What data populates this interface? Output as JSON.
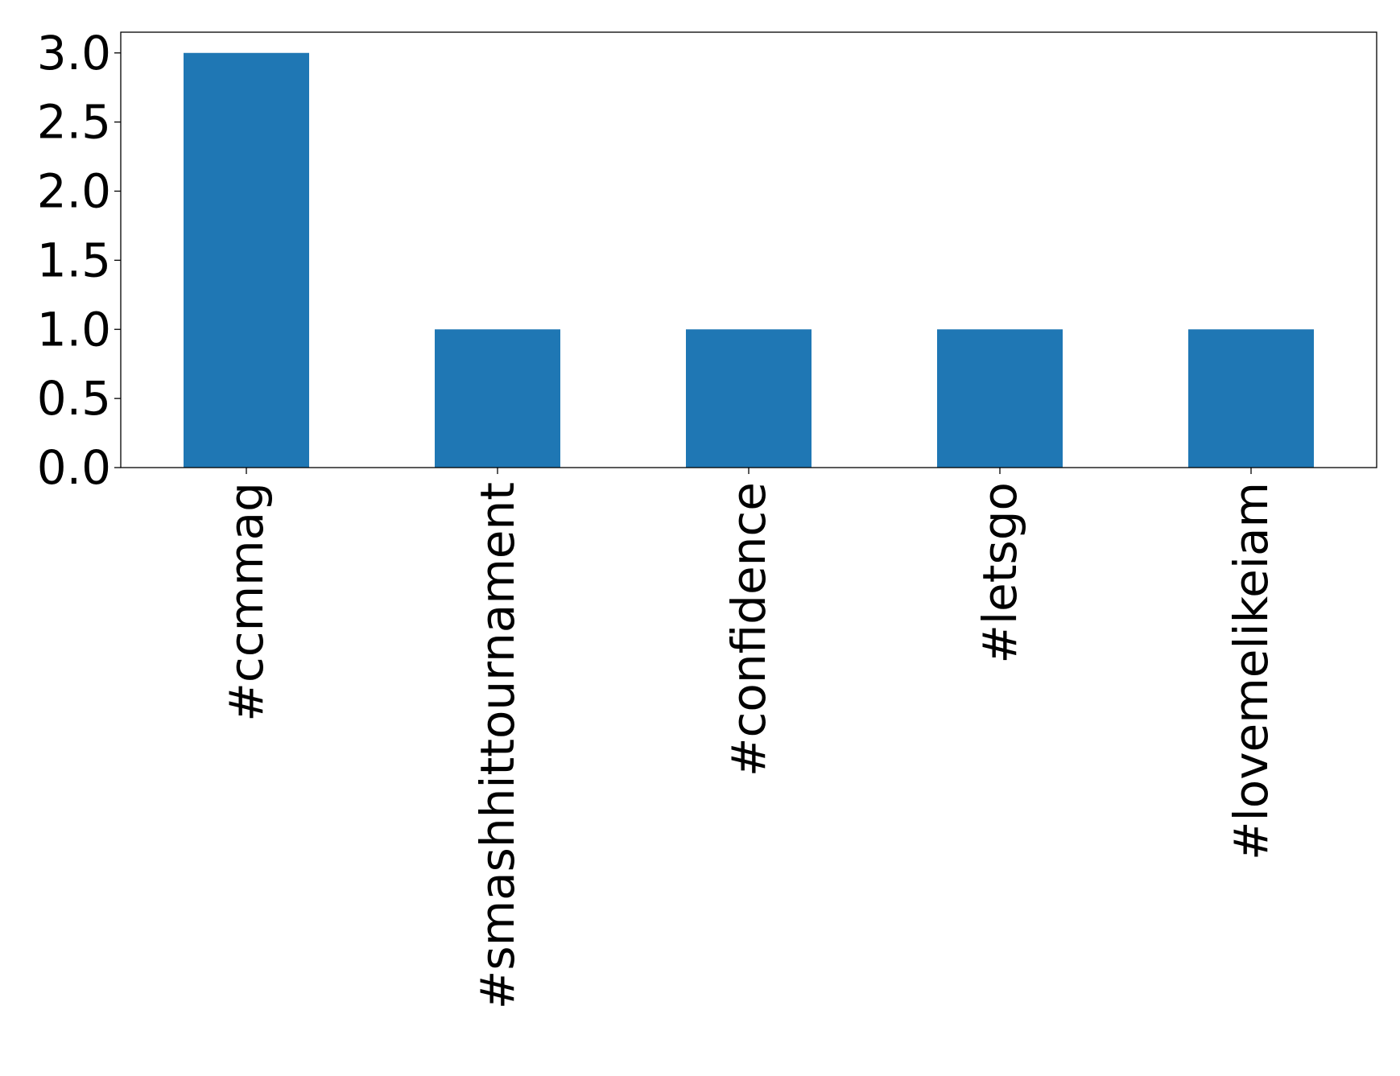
{
  "chart_data": {
    "type": "bar",
    "categories": [
      "#ccmmag",
      "#smashhittournament",
      "#confidence",
      "#letsgo",
      "#lovemelikeiam"
    ],
    "values": [
      3,
      1,
      1,
      1,
      1
    ],
    "title": "",
    "xlabel": "",
    "ylabel": "",
    "ylim": [
      0,
      3.15
    ],
    "yticks": [
      0.0,
      0.5,
      1.0,
      1.5,
      2.0,
      2.5,
      3.0
    ],
    "ytick_labels": [
      "0.0",
      "0.5",
      "1.0",
      "1.5",
      "2.0",
      "2.5",
      "3.0"
    ],
    "x_tick_rotation": "vertical",
    "grid": false,
    "legend": "none",
    "colors": {
      "bar": "#1f77b4",
      "axis": "#000000",
      "background": "#ffffff"
    }
  }
}
